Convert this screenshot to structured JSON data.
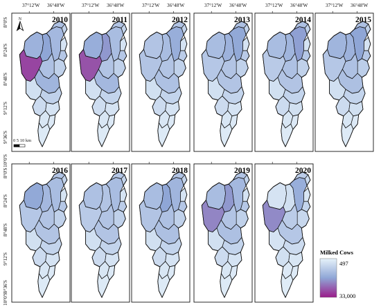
{
  "lon_labels": [
    "37°12'W",
    "36°48'W"
  ],
  "lat_labels": [
    "8°0'S",
    "8°24'S",
    "8°48'S",
    "9°12'S",
    "9°36'S",
    "10°0'S"
  ],
  "north_label": "N",
  "scalebar": {
    "label": "0  5 10 km"
  },
  "legend": {
    "title": "Milked Cows",
    "max_label": "497",
    "min_label": "33,000",
    "colors": {
      "low": "#e6f2fa",
      "mid": "#8fa6d6",
      "high": "#9b1c8a"
    }
  },
  "panels": [
    {
      "year": "2010",
      "levels": [
        0.42,
        0.5,
        0.38,
        0.32,
        0.2,
        0.1,
        0.28,
        0.22,
        0.32,
        0.85,
        0.4,
        0.12,
        0.22,
        0.15,
        0.1,
        0.08,
        0.06,
        0.05
      ]
    },
    {
      "year": "2011",
      "levels": [
        0.45,
        0.55,
        0.35,
        0.3,
        0.2,
        0.1,
        0.28,
        0.22,
        0.3,
        0.8,
        0.38,
        0.12,
        0.2,
        0.14,
        0.1,
        0.08,
        0.06,
        0.05
      ]
    },
    {
      "year": "2012",
      "levels": [
        0.3,
        0.35,
        0.45,
        0.3,
        0.2,
        0.1,
        0.25,
        0.22,
        0.3,
        0.3,
        0.32,
        0.12,
        0.2,
        0.15,
        0.1,
        0.08,
        0.06,
        0.05
      ]
    },
    {
      "year": "2013",
      "levels": [
        0.35,
        0.42,
        0.48,
        0.32,
        0.2,
        0.1,
        0.26,
        0.22,
        0.3,
        0.28,
        0.3,
        0.12,
        0.2,
        0.15,
        0.1,
        0.08,
        0.06,
        0.05
      ]
    },
    {
      "year": "2014",
      "levels": [
        0.35,
        0.4,
        0.52,
        0.32,
        0.22,
        0.1,
        0.28,
        0.22,
        0.32,
        0.26,
        0.3,
        0.12,
        0.2,
        0.15,
        0.12,
        0.08,
        0.06,
        0.05
      ]
    },
    {
      "year": "2015",
      "levels": [
        0.4,
        0.42,
        0.5,
        0.32,
        0.22,
        0.1,
        0.28,
        0.24,
        0.32,
        0.28,
        0.33,
        0.12,
        0.2,
        0.15,
        0.12,
        0.08,
        0.06,
        0.05
      ]
    },
    {
      "year": "2016",
      "levels": [
        0.48,
        0.38,
        0.35,
        0.3,
        0.2,
        0.1,
        0.28,
        0.22,
        0.3,
        0.28,
        0.3,
        0.12,
        0.2,
        0.15,
        0.1,
        0.08,
        0.06,
        0.05
      ]
    },
    {
      "year": "2017",
      "levels": [
        0.32,
        0.3,
        0.35,
        0.28,
        0.2,
        0.1,
        0.25,
        0.22,
        0.3,
        0.26,
        0.3,
        0.12,
        0.2,
        0.15,
        0.1,
        0.08,
        0.06,
        0.05
      ]
    },
    {
      "year": "2018",
      "levels": [
        0.35,
        0.5,
        0.4,
        0.3,
        0.2,
        0.1,
        0.28,
        0.22,
        0.32,
        0.3,
        0.33,
        0.12,
        0.2,
        0.15,
        0.1,
        0.08,
        0.06,
        0.05
      ]
    },
    {
      "year": "2019",
      "levels": [
        0.35,
        0.55,
        0.38,
        0.3,
        0.2,
        0.1,
        0.28,
        0.22,
        0.3,
        0.62,
        0.33,
        0.12,
        0.2,
        0.15,
        0.1,
        0.08,
        0.06,
        0.05
      ]
    },
    {
      "year": "2020",
      "levels": [
        0.1,
        0.12,
        0.45,
        0.25,
        0.15,
        0.08,
        0.2,
        0.18,
        0.25,
        0.6,
        0.28,
        0.1,
        0.15,
        0.12,
        0.08,
        0.06,
        0.05,
        0.04
      ]
    }
  ]
}
